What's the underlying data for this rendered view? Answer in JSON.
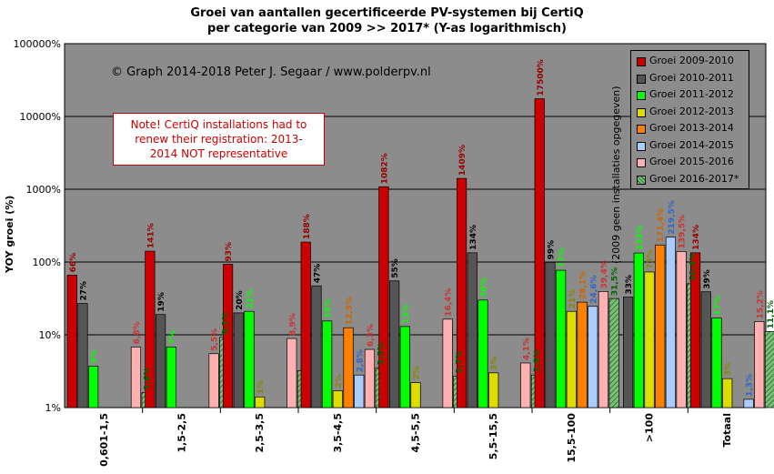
{
  "title": {
    "line1": "Groei van aantallen gecertificeerde PV-systemen bij CertiQ",
    "line2": "per categorie van 2009 >> 2017* (Y-as logarithmisch)"
  },
  "watermark": "© Graph 2014-2018 Peter J. Segaar / www.polderpv.nl",
  "note": {
    "line1": "Note! CertiQ installations had to",
    "line2": "renew their registration: 2013-",
    "line3": "2014 NOT representative"
  },
  "annotation_vertical": "(2009 geen installaties opgegeven)",
  "colors": {
    "plot_bg": "#8c8c8c",
    "grid": "#000000"
  },
  "chart_data": {
    "type": "bar",
    "ylabel": "YOY groei (%)",
    "yscale": "log",
    "ylim": [
      1,
      100000
    ],
    "ytick_labels": [
      "1%",
      "10%",
      "100%",
      "1000%",
      "10000%",
      "100000%"
    ],
    "categories": [
      "0,601-1,5",
      "1,5-2,5",
      "2,5-3,5",
      "3,5-4,5",
      "4,5-5,5",
      "5,5-15,5",
      "15,5-100",
      ">100",
      "Totaal"
    ],
    "series": [
      {
        "name": "Groei 2009-2010",
        "color": "#cc0000",
        "label_color": "#990000",
        "hatch": false,
        "values": [
          66,
          141,
          93,
          188,
          1082,
          1409,
          17500,
          null,
          134
        ],
        "labels": [
          "66%",
          "141%",
          "93%",
          "188%",
          "1082%",
          "1409%",
          "17500%",
          "",
          "134%"
        ]
      },
      {
        "name": "Groei 2010-2011",
        "color": "#555555",
        "label_color": "#000000",
        "hatch": false,
        "values": [
          27,
          19,
          20,
          47,
          55,
          134,
          99,
          33,
          39
        ],
        "labels": [
          "27%",
          "19%",
          "20%",
          "47%",
          "55%",
          "134%",
          "99%",
          "33%",
          "39%"
        ]
      },
      {
        "name": "Groei 2011-2012",
        "color": "#00ff00",
        "label_color": "#00ff00",
        "hatch": false,
        "values": [
          3.7,
          6.8,
          21,
          15.5,
          13,
          30,
          77,
          133,
          17
        ],
        "labels": [
          "4%",
          "7%",
          "21%",
          "16%",
          "13%",
          "30%",
          "77%",
          "133%",
          "17%"
        ]
      },
      {
        "name": "Groei 2012-2013",
        "color": "#dddd00",
        "label_color": "#888800",
        "hatch": false,
        "values": [
          null,
          null,
          1.4,
          1.7,
          2.2,
          3,
          21,
          73,
          2.5
        ],
        "labels": [
          "",
          "",
          "1%",
          "2%",
          "2%",
          "3%",
          "21%",
          "73%",
          "3%"
        ]
      },
      {
        "name": "Groei 2013-2014",
        "color": "#ff8000",
        "label_color": "#cc6600",
        "hatch": false,
        "values": [
          null,
          null,
          null,
          12.5,
          null,
          null,
          28.1,
          171.4,
          null
        ],
        "labels": [
          "",
          "",
          "",
          "12,5%",
          "",
          "",
          "28,1%",
          "171,4%",
          ""
        ]
      },
      {
        "name": "Groei 2014-2015",
        "color": "#aaccff",
        "label_color": "#3366cc",
        "hatch": false,
        "values": [
          null,
          null,
          null,
          2.8,
          null,
          null,
          24.6,
          219.5,
          1.3
        ],
        "labels": [
          "",
          "",
          "",
          "2,8%",
          "",
          "",
          "24,6%",
          "219,5%",
          "1,3%"
        ]
      },
      {
        "name": "Groei 2015-2016",
        "color": "#ffb0b0",
        "label_color": "#cc3333",
        "hatch": false,
        "values": [
          6.8,
          5.5,
          8.9,
          6.3,
          16.4,
          4.1,
          39.4,
          139.5,
          15.2
        ],
        "labels": [
          "6,8%",
          "5,5%",
          "8,9%",
          "6,3%",
          "16,4%",
          "4,1%",
          "39,4%",
          "139,5%",
          "15,2%"
        ]
      },
      {
        "name": "Groei 2016-2017*",
        "color": "#7ac07a",
        "label_color": "#006600",
        "hatch": true,
        "values": [
          1.6,
          9.2,
          3.2,
          3.5,
          2.7,
          2.8,
          31.5,
          50.4,
          11.1
        ],
        "labels": [
          "1,6%",
          "9,2%",
          "",
          "3,5%",
          "2,7%",
          "2,8%",
          "31,5%",
          "50,4%",
          "11,1%"
        ]
      }
    ]
  }
}
